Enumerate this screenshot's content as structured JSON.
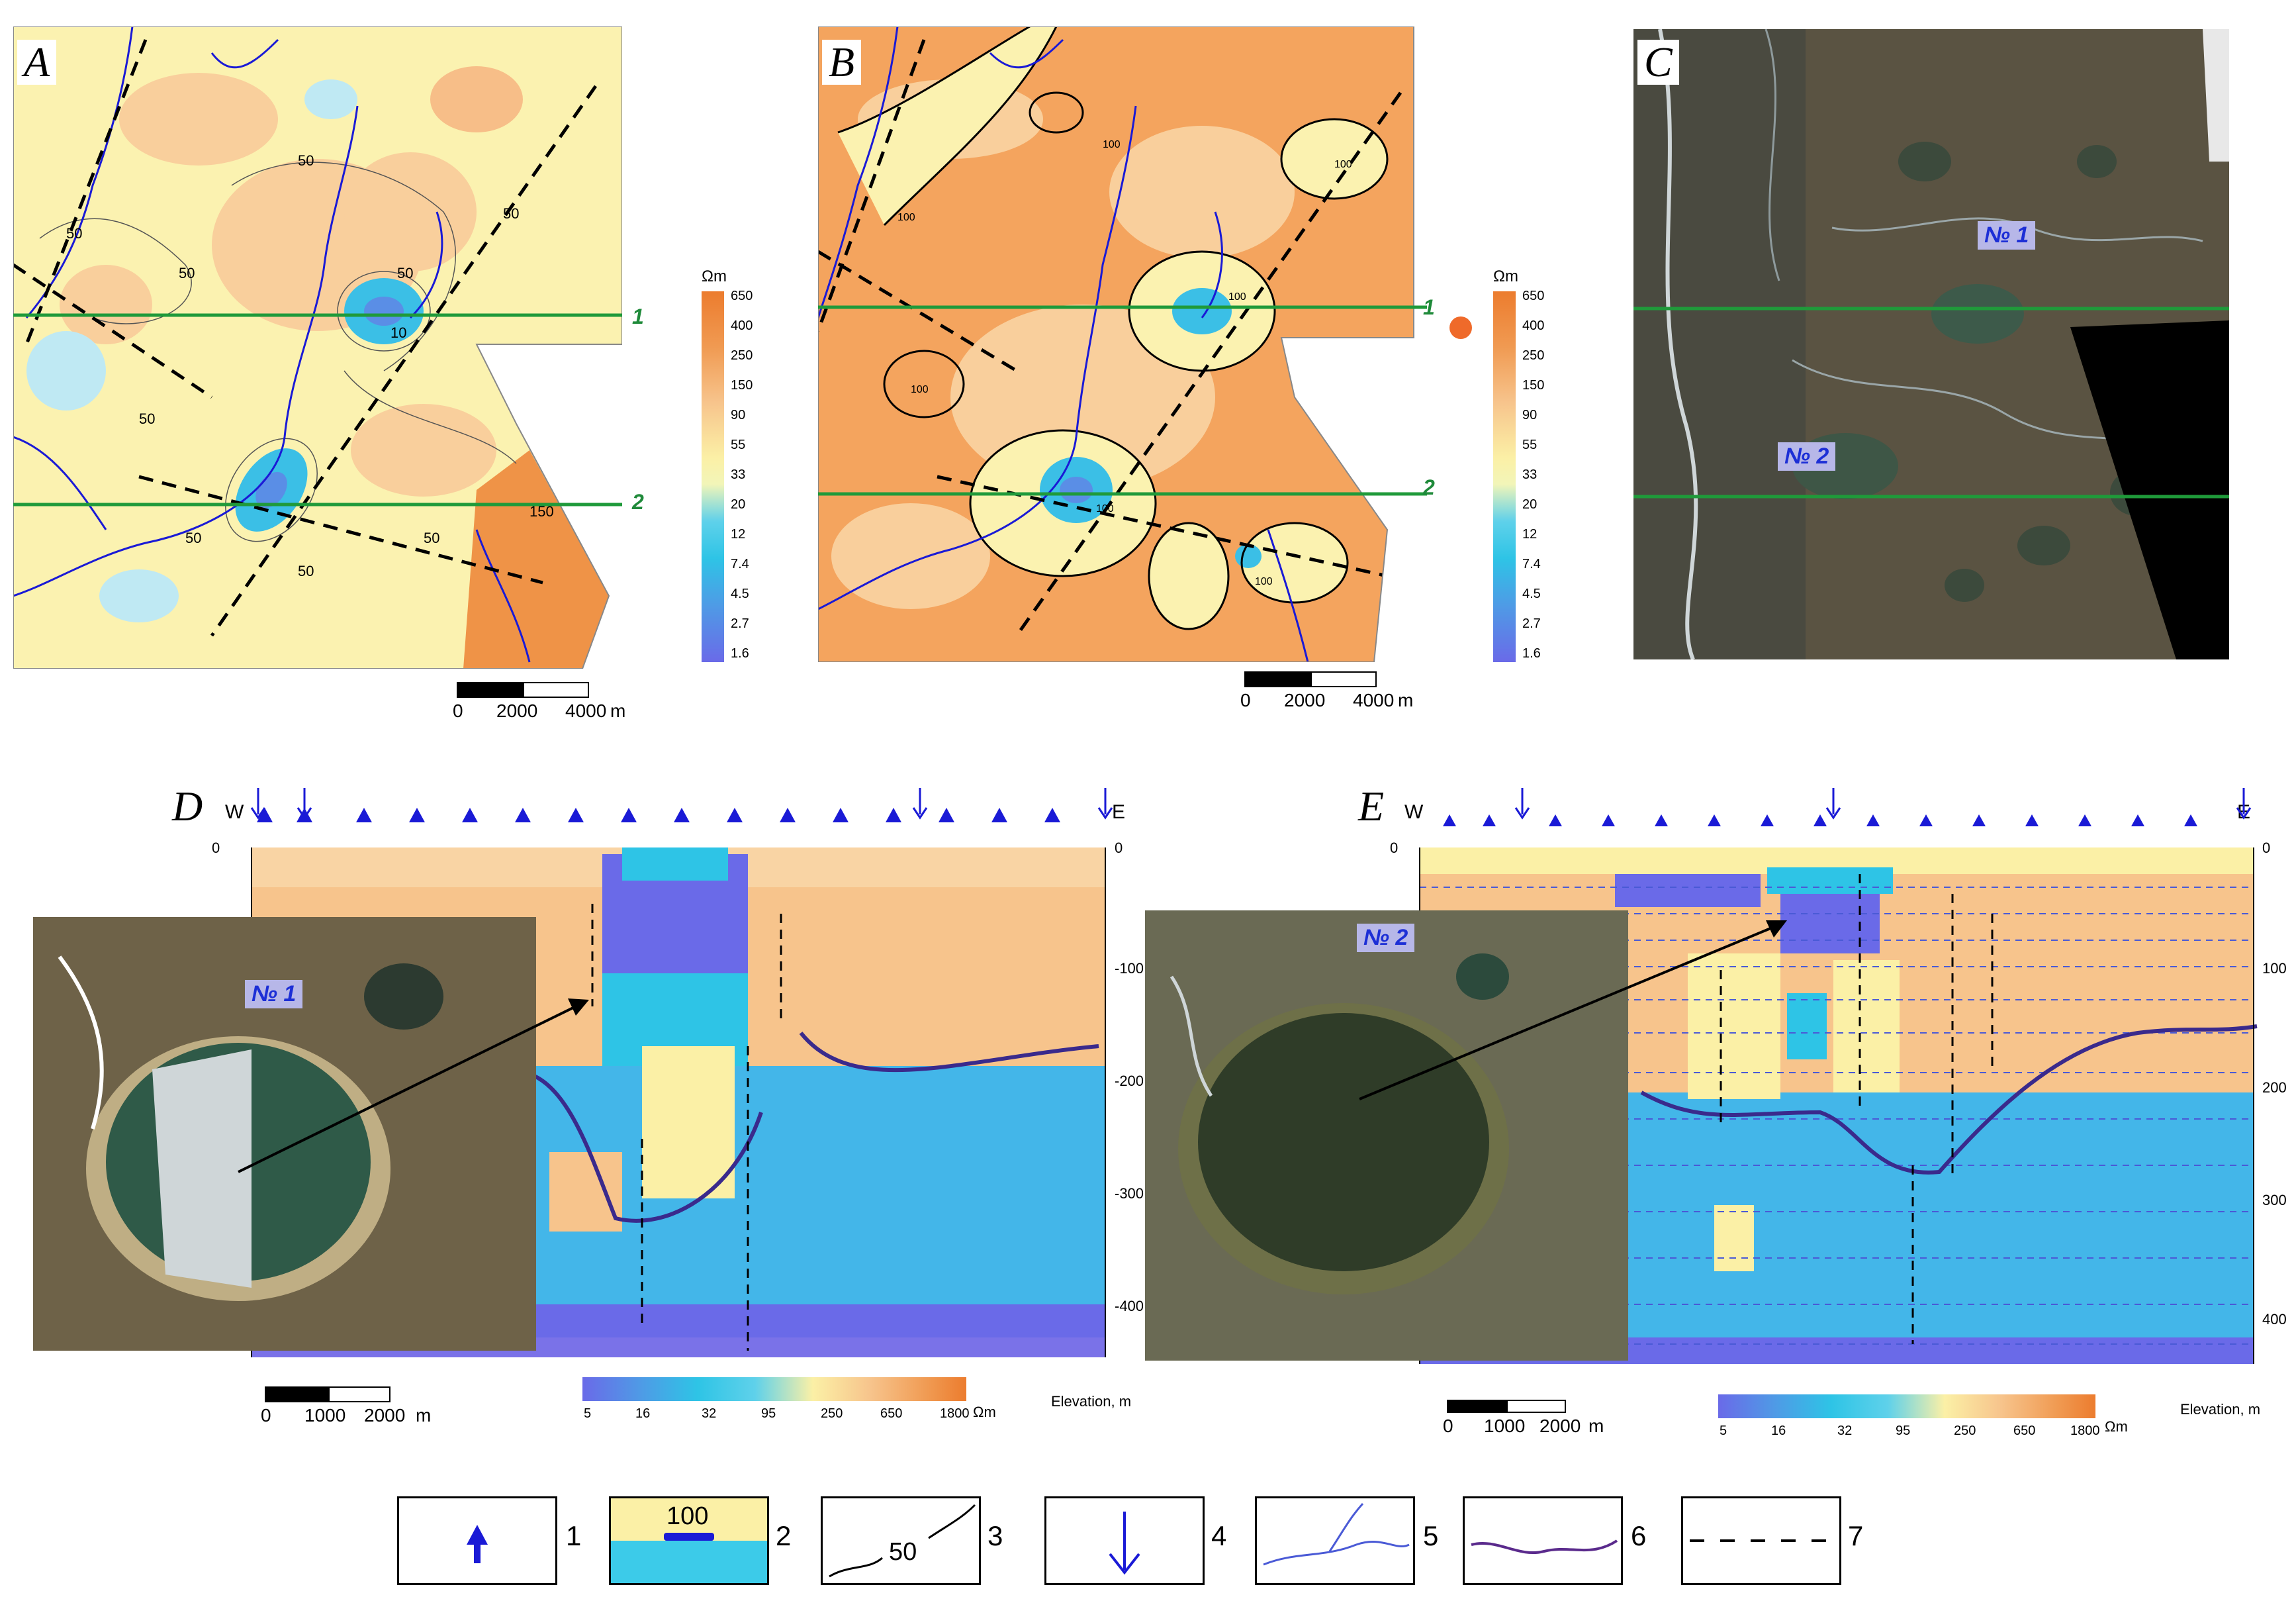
{
  "panels": {
    "A": {
      "label": "A",
      "contour_labels": [
        "50",
        "50",
        "50",
        "50",
        "50",
        "10",
        "50",
        "50",
        "50",
        "50",
        "150"
      ]
    },
    "B": {
      "label": "B",
      "contour_labels": [
        "100",
        "100",
        "100",
        "100",
        "100",
        "100",
        "100"
      ]
    },
    "C": {
      "label": "C",
      "lake1": "№ 1",
      "lake2": "№ 2"
    },
    "D": {
      "label": "D",
      "west": "W",
      "east": "E",
      "lake": "№ 1"
    },
    "E": {
      "label": "E",
      "west": "W",
      "east": "E",
      "lake": "№ 2"
    }
  },
  "profiles": {
    "p1": "1",
    "p2": "2"
  },
  "colorbar_vertical": {
    "unit": "Ωm",
    "ticks": [
      "650",
      "400",
      "250",
      "150",
      "90",
      "55",
      "33",
      "20",
      "12",
      "7.4",
      "4.5",
      "2.7",
      "1.6"
    ]
  },
  "colorbar_horizontal": {
    "unit": "Ωm",
    "ticks": [
      "5",
      "16",
      "32",
      "95",
      "250",
      "650",
      "1800"
    ]
  },
  "scale_map": {
    "ticks": [
      "0",
      "2000",
      "4000"
    ],
    "unit": "m"
  },
  "scale_section": {
    "ticks": [
      "0",
      "1000",
      "2000"
    ],
    "unit": "m"
  },
  "depth_axis": {
    "ticks": [
      "0",
      "-100",
      "-200",
      "-300",
      "-400"
    ],
    "ticks_E": [
      "0",
      "100",
      "200",
      "300",
      "400"
    ],
    "title": "Elevation, m"
  },
  "legend": {
    "items": [
      {
        "num": "1"
      },
      {
        "num": "2",
        "value": "100"
      },
      {
        "num": "3",
        "value": "50"
      },
      {
        "num": "4"
      },
      {
        "num": "5"
      },
      {
        "num": "6"
      },
      {
        "num": "7"
      }
    ]
  },
  "colors": {
    "profile_green": "#1f9a3a",
    "river_blue": "#1a1ad6",
    "boundary_purple": "#3a2a8c",
    "orange_high": "#ee8a3a",
    "yellow_mid": "#fbf2a8",
    "cyan_low": "#2ec4e6",
    "blue_lowest": "#6a6ae8"
  }
}
